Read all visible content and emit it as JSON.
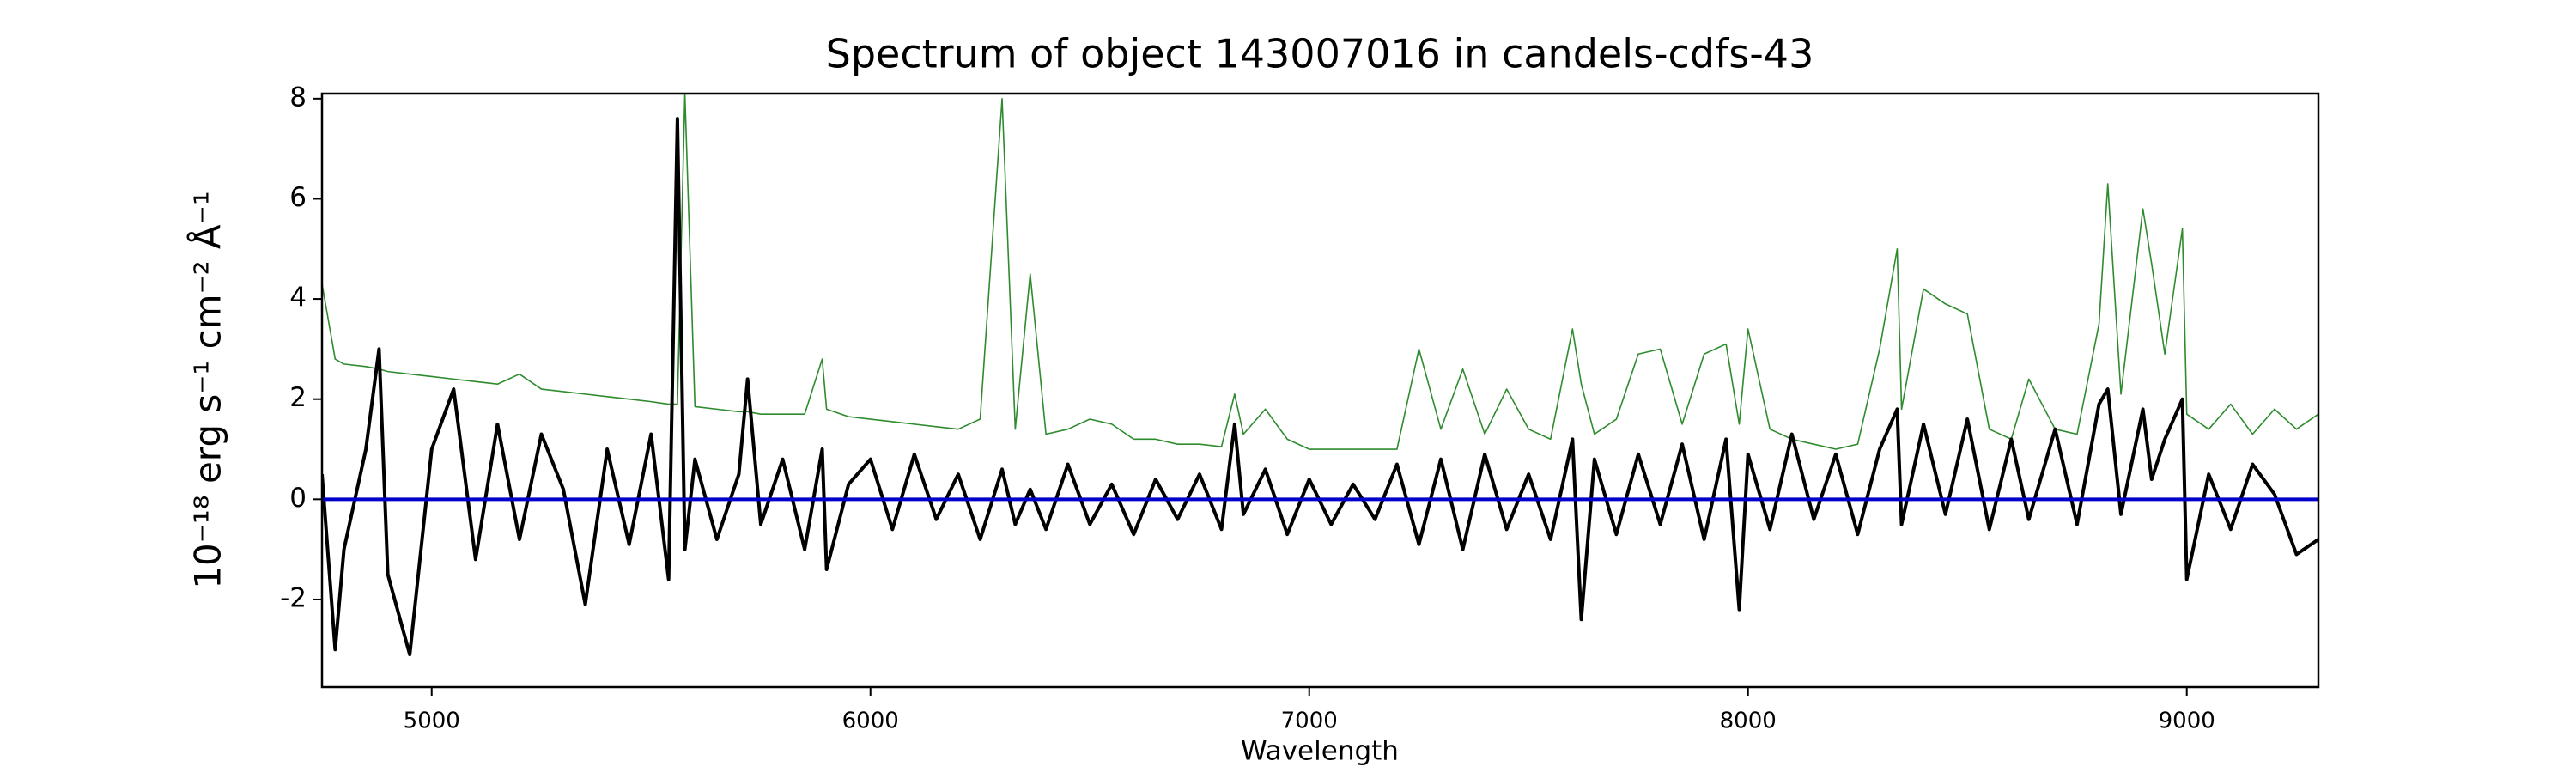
{
  "chart_data": {
    "type": "line",
    "title": "Spectrum of object 143007016 in candels-cdfs-43",
    "x_label": "Wavelength",
    "y_label": "10⁻¹⁸ erg s⁻¹ cm⁻² Å⁻¹",
    "xlim": [
      4750,
      9300
    ],
    "ylim": [
      -3.75,
      8.1
    ],
    "xticks": [
      5000,
      6000,
      7000,
      8000,
      9000
    ],
    "yticks": [
      -2,
      0,
      2,
      4,
      6,
      8
    ],
    "x": [
      4750,
      4780,
      4800,
      4850,
      4880,
      4900,
      4950,
      5000,
      5050,
      5100,
      5150,
      5200,
      5250,
      5300,
      5350,
      5400,
      5450,
      5500,
      5540,
      5560,
      5577,
      5600,
      5650,
      5700,
      5720,
      5750,
      5800,
      5850,
      5890,
      5900,
      5950,
      6000,
      6050,
      6100,
      6150,
      6200,
      6250,
      6300,
      6330,
      6364,
      6400,
      6450,
      6500,
      6550,
      6600,
      6650,
      6700,
      6750,
      6800,
      6830,
      6850,
      6900,
      6950,
      7000,
      7050,
      7100,
      7150,
      7200,
      7250,
      7300,
      7350,
      7400,
      7450,
      7500,
      7550,
      7600,
      7620,
      7650,
      7700,
      7750,
      7800,
      7850,
      7900,
      7950,
      7980,
      8000,
      8050,
      8100,
      8150,
      8200,
      8250,
      8300,
      8340,
      8350,
      8400,
      8450,
      8500,
      8550,
      8600,
      8640,
      8700,
      8750,
      8800,
      8820,
      8850,
      8900,
      8920,
      8950,
      8990,
      9000,
      9050,
      9100,
      9150,
      9200,
      9250,
      9300
    ],
    "series": [
      {
        "color": "#2e8b2e",
        "width": 1.6,
        "values": [
          4.3,
          2.8,
          2.7,
          2.65,
          2.6,
          2.55,
          2.5,
          2.45,
          2.4,
          2.35,
          2.3,
          2.5,
          2.2,
          2.15,
          2.1,
          2.05,
          2.0,
          1.95,
          1.9,
          1.9,
          8.1,
          1.85,
          1.8,
          1.75,
          1.75,
          1.7,
          1.7,
          1.7,
          2.8,
          1.8,
          1.65,
          1.6,
          1.55,
          1.5,
          1.45,
          1.4,
          1.6,
          8.0,
          1.4,
          4.5,
          1.3,
          1.4,
          1.6,
          1.5,
          1.2,
          1.2,
          1.1,
          1.1,
          1.05,
          2.1,
          1.3,
          1.8,
          1.2,
          1.0,
          1.0,
          1.0,
          1.0,
          1.0,
          3.0,
          1.4,
          2.6,
          1.3,
          2.2,
          1.4,
          1.2,
          3.4,
          2.3,
          1.3,
          1.6,
          2.9,
          3.0,
          1.5,
          2.9,
          3.1,
          1.5,
          3.4,
          1.4,
          1.2,
          1.1,
          1.0,
          1.1,
          3.0,
          5.0,
          1.8,
          4.2,
          3.9,
          3.7,
          1.4,
          1.2,
          2.4,
          1.4,
          1.3,
          3.5,
          6.3,
          2.1,
          5.8,
          4.7,
          2.9,
          5.4,
          1.7,
          1.4,
          1.9,
          1.3,
          1.8,
          1.4,
          1.7
        ]
      },
      {
        "color": "#000000",
        "width": 4,
        "values": [
          0.5,
          -3.0,
          -1.0,
          1.0,
          3.0,
          -1.5,
          -3.1,
          1.0,
          2.2,
          -1.2,
          1.5,
          -0.8,
          1.3,
          0.2,
          -2.1,
          1.0,
          -0.9,
          1.3,
          -1.6,
          7.6,
          -1.0,
          0.8,
          -0.8,
          0.5,
          2.4,
          -0.5,
          0.8,
          -1.0,
          1.0,
          -1.4,
          0.3,
          0.8,
          -0.6,
          0.9,
          -0.4,
          0.5,
          -0.8,
          0.6,
          -0.5,
          0.2,
          -0.6,
          0.7,
          -0.5,
          0.3,
          -0.7,
          0.4,
          -0.4,
          0.5,
          -0.6,
          1.5,
          -0.3,
          0.6,
          -0.7,
          0.4,
          -0.5,
          0.3,
          -0.4,
          0.7,
          -0.9,
          0.8,
          -1.0,
          0.9,
          -0.6,
          0.5,
          -0.8,
          1.2,
          -2.4,
          0.8,
          -0.7,
          0.9,
          -0.5,
          1.1,
          -0.8,
          1.2,
          -2.2,
          0.9,
          -0.6,
          1.3,
          -0.4,
          0.9,
          -0.7,
          1.0,
          1.8,
          -0.5,
          1.5,
          -0.3,
          1.6,
          -0.6,
          1.2,
          -0.4,
          1.4,
          -0.5,
          1.9,
          2.2,
          -0.3,
          1.8,
          0.4,
          1.2,
          2.0,
          -1.6,
          0.5,
          -0.6,
          0.7,
          0.1,
          -1.1,
          -0.8
        ]
      },
      {
        "color": "#0000cc",
        "width": 4,
        "values": [
          0,
          0,
          0,
          0,
          0,
          0,
          0,
          0,
          0,
          0,
          0,
          0,
          0,
          0,
          0,
          0,
          0,
          0,
          0,
          0,
          0,
          0,
          0,
          0,
          0,
          0,
          0,
          0,
          0,
          0,
          0,
          0,
          0,
          0,
          0,
          0,
          0,
          0,
          0,
          0,
          0,
          0,
          0,
          0,
          0,
          0,
          0,
          0,
          0,
          0,
          0,
          0,
          0,
          0,
          0,
          0,
          0,
          0,
          0,
          0,
          0,
          0,
          0,
          0,
          0,
          0,
          0,
          0,
          0,
          0,
          0,
          0,
          0,
          0,
          0,
          0,
          0,
          0,
          0,
          0,
          0,
          0,
          0,
          0,
          0,
          0,
          0,
          0,
          0,
          0,
          0,
          0,
          0,
          0,
          0,
          0,
          0,
          0,
          0,
          0,
          0,
          0,
          0,
          0,
          0,
          0
        ]
      }
    ]
  }
}
